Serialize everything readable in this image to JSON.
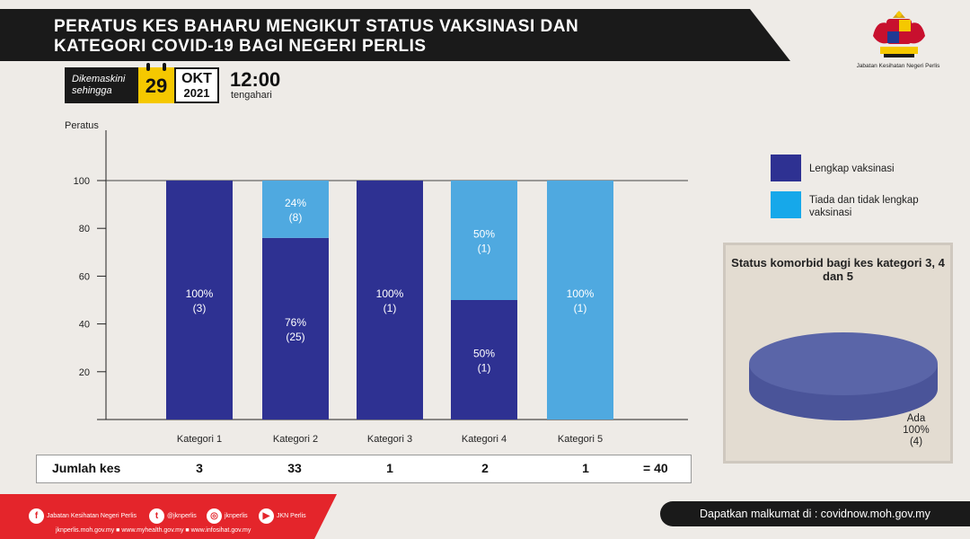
{
  "header": {
    "title_line1": "PERATUS KES BAHARU MENGIKUT STATUS VAKSINASI  DAN",
    "title_line2": "KATEGORI COVID-19 BAGI NEGERI PERLIS",
    "org_name": "Jabatan Kesihatan Negeri Perlis"
  },
  "update": {
    "label_line1": "Dikemaskini",
    "label_line2": "sehingga",
    "day": "29",
    "month": "OKT",
    "year": "2021",
    "time": "12:00",
    "time_label": "tengahari"
  },
  "chart_data": [
    {
      "type": "bar",
      "stacked": true,
      "ylabel": "Peratus",
      "ylim": [
        0,
        100
      ],
      "yticks": [
        20,
        40,
        60,
        80,
        100
      ],
      "categories": [
        "Kategori 1",
        "Kategori 2",
        "Kategori 3",
        "Kategori 4",
        "Kategori 5"
      ],
      "grid": false,
      "legend": "right",
      "series": [
        {
          "name": "Lengkap vaksinasi",
          "color": "#2e3192",
          "values": [
            100,
            76,
            100,
            50,
            0
          ],
          "labels": [
            "100%",
            "76%",
            "100%",
            "50%",
            ""
          ],
          "counts": [
            "(3)",
            "(25)",
            "(1)",
            "(1)",
            ""
          ]
        },
        {
          "name": "Tiada dan tidak lengkap vaksinasi",
          "color": "#4fa9e0",
          "values": [
            0,
            24,
            0,
            50,
            100
          ],
          "labels": [
            "",
            "24%",
            "",
            "50%",
            "100%"
          ],
          "counts": [
            "",
            "(8)",
            "",
            "(1)",
            "(1)"
          ]
        }
      ]
    },
    {
      "type": "pie",
      "title": "Status komorbid bagi kes kategori 3, 4 dan 5",
      "slices": [
        {
          "name": "Ada",
          "value": 100,
          "label": "100%",
          "count": "(4)",
          "color": "#5a65a8"
        }
      ]
    }
  ],
  "legend_items": [
    {
      "line1": "Lengkap vaksinasi",
      "line2": "",
      "color": "#2e3192"
    },
    {
      "line1": "Tiada dan tidak lengkap",
      "line2": "vaksinasi",
      "color": "#16a8ea"
    }
  ],
  "totals": {
    "label": "Jumlah kes",
    "values": [
      "3",
      "33",
      "1",
      "2",
      "1"
    ],
    "sum": "= 40"
  },
  "footer": {
    "socials": [
      {
        "icon": "facebook-icon",
        "glyph": "f",
        "text": "Jabatan Kesihatan Negeri Perlis"
      },
      {
        "icon": "twitter-icon",
        "glyph": "t",
        "text": "@jknperlis"
      },
      {
        "icon": "instagram-icon",
        "glyph": "◎",
        "text": "jknperlis"
      },
      {
        "icon": "youtube-icon",
        "glyph": "▶",
        "text": "JKN Perlis"
      }
    ],
    "links": "jknperlis.moh.gov.my ■ www.myhealth.gov.my ■ www.infosihat.gov.my",
    "info": "Dapatkan malkumat di : covidnow.moh.gov.my"
  }
}
